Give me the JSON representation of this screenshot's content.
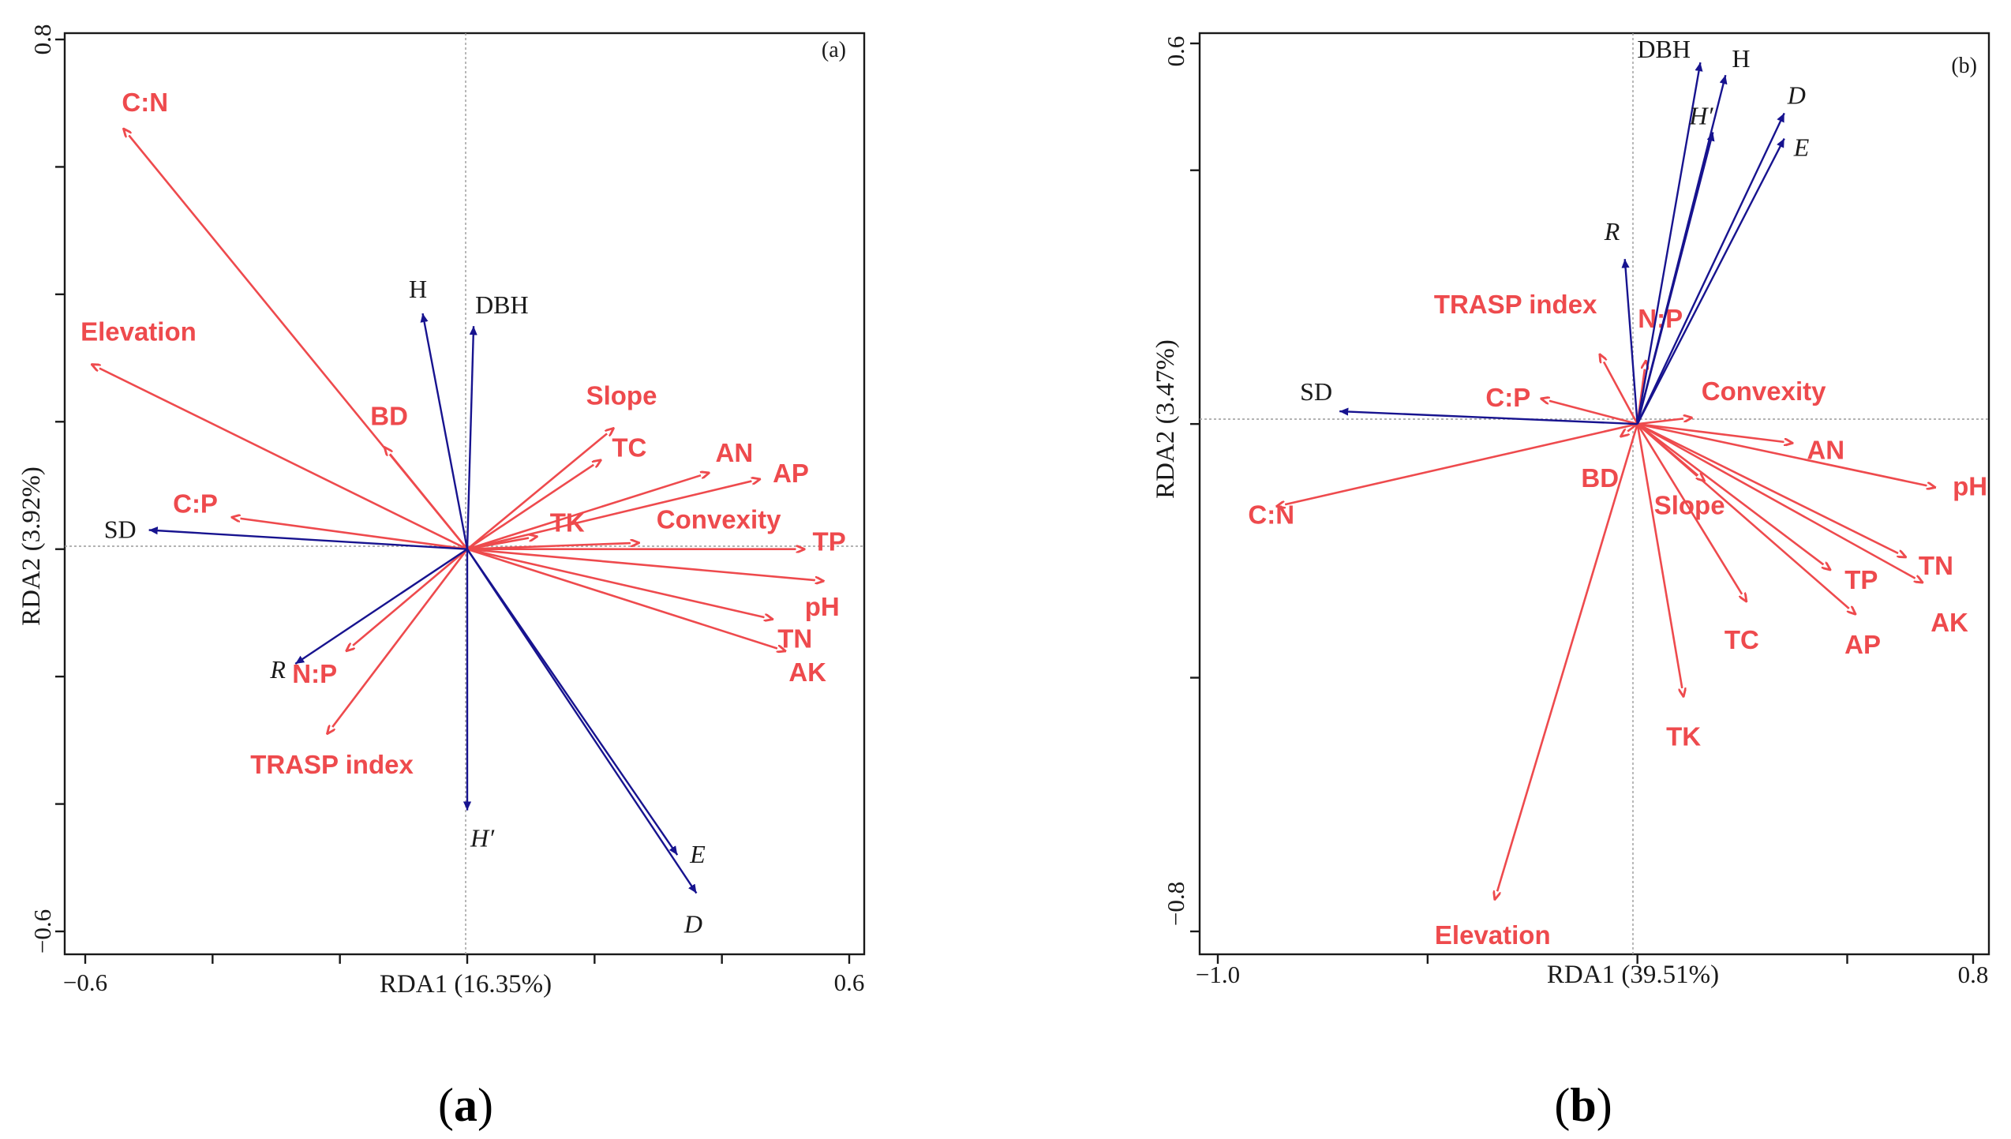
{
  "colors": {
    "environment": "#ee4a4d",
    "species": "#17138f",
    "frame": "#1a1a1a",
    "guide": "#9a9a9a"
  },
  "chart_data": [
    {
      "type": "biplot",
      "panel_tag": "(a)",
      "caption": "a",
      "xlabel": "RDA1 (16.35%)",
      "ylabel": "RDA2 (3.92%)",
      "xlim": [
        -0.6,
        0.6
      ],
      "ylim": [
        -0.6,
        0.8
      ],
      "x_tick_labels": [
        {
          "value": -0.6,
          "label": "−0.6"
        },
        {
          "value": 0.6,
          "label": "0.6"
        }
      ],
      "y_tick_labels": [
        {
          "value": -0.6,
          "label": "−0.6"
        },
        {
          "value": 0.8,
          "label": "0.8"
        }
      ],
      "minor_ticks_x": [
        -0.4,
        -0.2,
        0,
        0.2,
        0.4
      ],
      "minor_ticks_y": [
        -0.4,
        -0.2,
        0,
        0.2,
        0.4,
        0.6
      ],
      "environment_vectors": [
        {
          "label": "C:N",
          "x": -0.54,
          "y": 0.66
        },
        {
          "label": "Elevation",
          "x": -0.59,
          "y": 0.29
        },
        {
          "label": "BD",
          "x": -0.13,
          "y": 0.16
        },
        {
          "label": "C:P",
          "x": -0.37,
          "y": 0.05
        },
        {
          "label": "N:P",
          "x": -0.19,
          "y": -0.16
        },
        {
          "label": "TRASP index",
          "x": -0.22,
          "y": -0.29
        },
        {
          "label": "Slope",
          "x": 0.23,
          "y": 0.19
        },
        {
          "label": "TC",
          "x": 0.21,
          "y": 0.14
        },
        {
          "label": "AN",
          "x": 0.38,
          "y": 0.12
        },
        {
          "label": "AP",
          "x": 0.46,
          "y": 0.11
        },
        {
          "label": "TK",
          "x": 0.11,
          "y": 0.02
        },
        {
          "label": "Convexity",
          "x": 0.27,
          "y": 0.01
        },
        {
          "label": "TP",
          "x": 0.53,
          "y": 0.0
        },
        {
          "label": "pH",
          "x": 0.56,
          "y": -0.05
        },
        {
          "label": "TN",
          "x": 0.48,
          "y": -0.11
        },
        {
          "label": "AK",
          "x": 0.5,
          "y": -0.16
        }
      ],
      "species_vectors": [
        {
          "label": "H",
          "x": -0.07,
          "y": 0.37,
          "italic": false
        },
        {
          "label": "DBH",
          "x": 0.01,
          "y": 0.35,
          "italic": false
        },
        {
          "label": "SD",
          "x": -0.5,
          "y": 0.03,
          "italic": false
        },
        {
          "label": "R",
          "x": -0.27,
          "y": -0.18,
          "italic": true
        },
        {
          "label": "H′",
          "x": 0.0,
          "y": -0.41,
          "italic": true
        },
        {
          "label": "E",
          "x": 0.33,
          "y": -0.48,
          "italic": true
        },
        {
          "label": "D",
          "x": 0.36,
          "y": -0.54,
          "italic": true
        }
      ]
    },
    {
      "type": "biplot",
      "panel_tag": "(b)",
      "caption": "b",
      "xlabel": "RDA1 (39.51%)",
      "ylabel": "RDA2 (3.47%)",
      "xlim": [
        -1.0,
        0.8
      ],
      "ylim": [
        -0.8,
        0.6
      ],
      "x_tick_labels": [
        {
          "value": -1.0,
          "label": "−1.0"
        },
        {
          "value": 0.8,
          "label": "0.8"
        }
      ],
      "y_tick_labels": [
        {
          "value": -0.8,
          "label": "−0.8"
        },
        {
          "value": 0.6,
          "label": "0.6"
        }
      ],
      "minor_ticks_x": [
        -0.5,
        0,
        0.5
      ],
      "minor_ticks_y": [
        -0.4,
        0,
        0.4
      ],
      "environment_vectors": [
        {
          "label": "C:N",
          "x": -0.86,
          "y": -0.13
        },
        {
          "label": "Elevation",
          "x": -0.34,
          "y": -0.75
        },
        {
          "label": "TRASP index",
          "x": -0.09,
          "y": 0.11
        },
        {
          "label": "C:P",
          "x": -0.23,
          "y": 0.04
        },
        {
          "label": "BD",
          "x": -0.04,
          "y": -0.02
        },
        {
          "label": "N:P",
          "x": 0.02,
          "y": 0.1
        },
        {
          "label": "Convexity",
          "x": 0.13,
          "y": 0.01
        },
        {
          "label": "AN",
          "x": 0.37,
          "y": -0.03
        },
        {
          "label": "pH",
          "x": 0.71,
          "y": -0.1
        },
        {
          "label": "TN",
          "x": 0.64,
          "y": -0.21
        },
        {
          "label": "AK",
          "x": 0.68,
          "y": -0.25
        },
        {
          "label": "TP",
          "x": 0.46,
          "y": -0.23
        },
        {
          "label": "AP",
          "x": 0.52,
          "y": -0.3
        },
        {
          "label": "Slope",
          "x": 0.16,
          "y": -0.09
        },
        {
          "label": "TC",
          "x": 0.26,
          "y": -0.28
        },
        {
          "label": "TK",
          "x": 0.11,
          "y": -0.43
        }
      ],
      "species_vectors": [
        {
          "label": "DBH",
          "x": 0.15,
          "y": 0.57,
          "italic": false
        },
        {
          "label": "H",
          "x": 0.21,
          "y": 0.55,
          "italic": false
        },
        {
          "label": "H′",
          "x": 0.18,
          "y": 0.46,
          "italic": true
        },
        {
          "label": "D",
          "x": 0.35,
          "y": 0.49,
          "italic": true
        },
        {
          "label": "E",
          "x": 0.35,
          "y": 0.45,
          "italic": true
        },
        {
          "label": "R",
          "x": -0.03,
          "y": 0.26,
          "italic": true
        },
        {
          "label": "SD",
          "x": -0.71,
          "y": 0.02,
          "italic": false
        }
      ]
    }
  ]
}
